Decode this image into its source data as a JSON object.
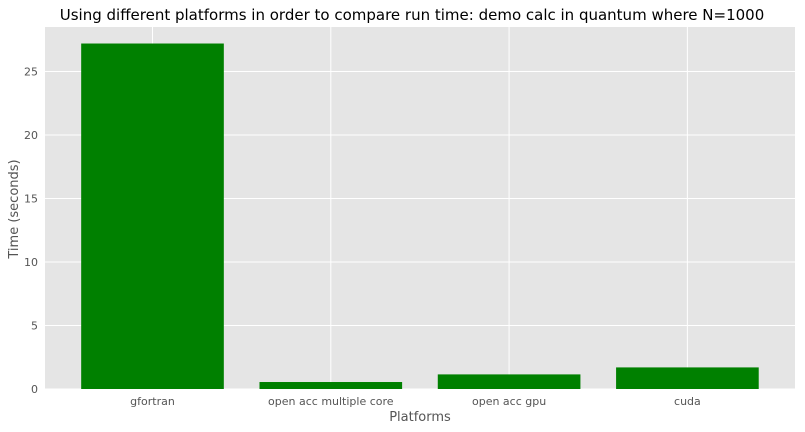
{
  "chart_data": {
    "type": "bar",
    "title": "Using different platforms in order to compare run time: demo calc in quantum where N=1000",
    "xlabel": "Platforms",
    "ylabel": "Time (seconds)",
    "categories": [
      "gfortran",
      "open acc multiple core",
      "open acc gpu",
      "cuda"
    ],
    "values": [
      27.2,
      0.55,
      1.15,
      1.7
    ],
    "ylim": [
      0,
      28.5
    ],
    "yticks": [
      0,
      5,
      10,
      15,
      20,
      25
    ],
    "grid": true,
    "style": "ggplot",
    "colors": {
      "bar": "#008000",
      "background": "#e5e5e5",
      "grid": "#ffffff",
      "text": "#555555"
    }
  }
}
